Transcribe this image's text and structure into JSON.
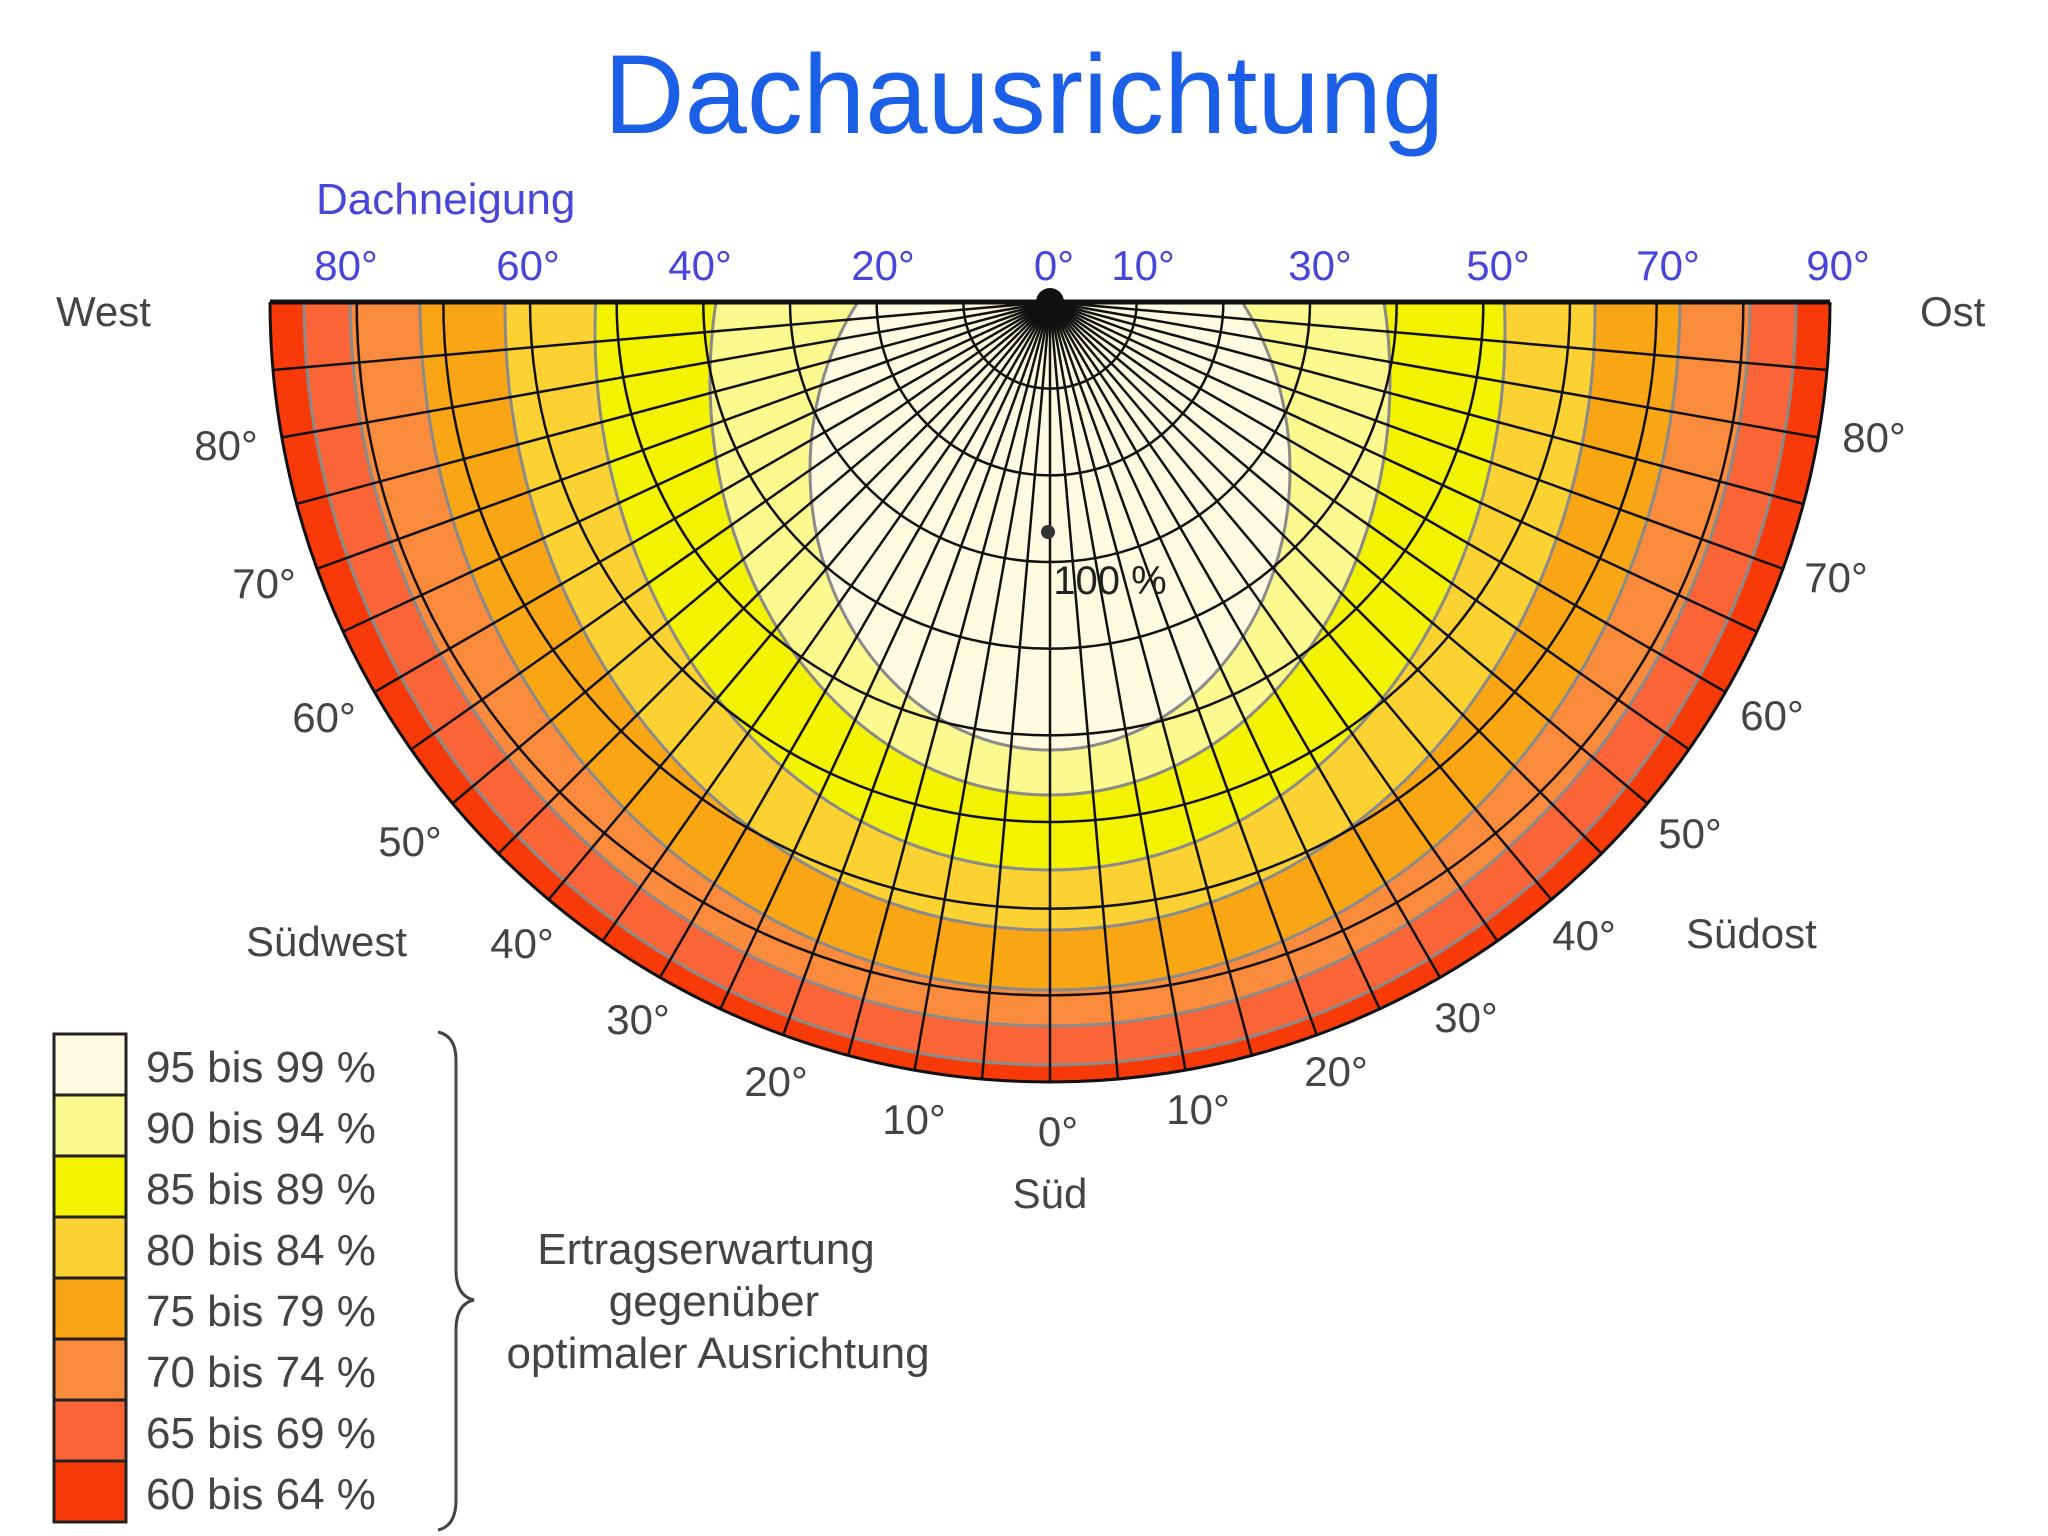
{
  "title": "Dachausrichtung",
  "colors": {
    "title": "#1a5fe6",
    "dachneigung_label": "#4646d8",
    "bands": [
      "#fffbe0",
      "#fcfa8e",
      "#f3f200",
      "#fbd232",
      "#f9a514",
      "#fa8a3c",
      "#fa6436",
      "#f73a08"
    ]
  },
  "diagram": {
    "dachneigung_label": "Dachneigung",
    "top_angles": [
      "80°",
      "60°",
      "40°",
      "20°",
      "0°",
      "10°",
      "30°",
      "50°",
      "70°",
      "90°"
    ],
    "west": "West",
    "ost": "Ost",
    "sudwest": "Südwest",
    "sudost": "Südost",
    "sud": "Süd",
    "left_angles": [
      "80°",
      "70°",
      "60°",
      "50°",
      "40°",
      "30°",
      "20°",
      "10°"
    ],
    "right_angles": [
      "80°",
      "70°",
      "60°",
      "50°",
      "40°",
      "30°",
      "20°",
      "10°"
    ],
    "bottom_angle": "0°",
    "center_label": "100 %"
  },
  "legend": {
    "items": [
      {
        "label": "95 bis 99 %",
        "color": "#fffbe0"
      },
      {
        "label": "90 bis 94 %",
        "color": "#fcfa8e"
      },
      {
        "label": "85 bis 89 %",
        "color": "#f3f200"
      },
      {
        "label": "80 bis 84 %",
        "color": "#fbd232"
      },
      {
        "label": "75 bis 79 %",
        "color": "#f9a514"
      },
      {
        "label": "70 bis 74 %",
        "color": "#fa8a3c"
      },
      {
        "label": "65 bis 69 %",
        "color": "#fa6436"
      },
      {
        "label": "60 bis 64 %",
        "color": "#f73a08"
      }
    ],
    "caption": [
      "Ertragserwartung",
      "gegenüber",
      "optimaler Ausrichtung"
    ]
  }
}
